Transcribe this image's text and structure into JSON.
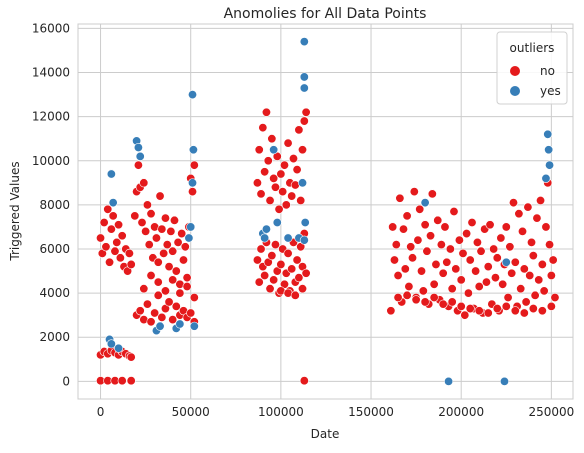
{
  "chart_data": {
    "type": "scatter",
    "title": "Anomolies for All Data Points",
    "xlabel": "Date",
    "ylabel": "Triggered Values",
    "xlim": [
      -12500,
      262000
    ],
    "ylim": [
      -800,
      16200
    ],
    "xticks": [
      0,
      50000,
      100000,
      150000,
      200000,
      250000
    ],
    "yticks": [
      0,
      2000,
      4000,
      6000,
      8000,
      10000,
      12000,
      14000,
      16000
    ],
    "grid": true,
    "legend": {
      "title": "outliers",
      "position": "top-right",
      "entries": [
        {
          "label": "no",
          "color": "#e41a1c"
        },
        {
          "label": "yes",
          "color": "#377eb8"
        }
      ]
    },
    "series": [
      {
        "name": "no",
        "color": "#e41a1c",
        "points": [
          [
            0,
            6500
          ],
          [
            1000,
            5800
          ],
          [
            2000,
            7200
          ],
          [
            3000,
            6100
          ],
          [
            4000,
            7800
          ],
          [
            5000,
            5400
          ],
          [
            6000,
            6900
          ],
          [
            7000,
            7500
          ],
          [
            8000,
            5900
          ],
          [
            9000,
            6300
          ],
          [
            10000,
            7100
          ],
          [
            11000,
            5600
          ],
          [
            12000,
            6600
          ],
          [
            13000,
            5200
          ],
          [
            14000,
            6000
          ],
          [
            15000,
            5000
          ],
          [
            16000,
            5800
          ],
          [
            17000,
            5300
          ],
          [
            0,
            1200
          ],
          [
            2000,
            1350
          ],
          [
            4000,
            1250
          ],
          [
            6000,
            1400
          ],
          [
            8000,
            1300
          ],
          [
            10000,
            1200
          ],
          [
            12000,
            1350
          ],
          [
            14000,
            1250
          ],
          [
            16000,
            1150
          ],
          [
            17000,
            1100
          ],
          [
            0,
            30
          ],
          [
            4000,
            30
          ],
          [
            8000,
            30
          ],
          [
            12000,
            30
          ],
          [
            17000,
            30
          ],
          [
            19000,
            7500
          ],
          [
            20000,
            8600
          ],
          [
            21000,
            9800
          ],
          [
            22000,
            8800
          ],
          [
            23000,
            7200
          ],
          [
            24000,
            9000
          ],
          [
            25000,
            6800
          ],
          [
            26000,
            8000
          ],
          [
            27000,
            6200
          ],
          [
            28000,
            7600
          ],
          [
            29000,
            5600
          ],
          [
            30000,
            7000
          ],
          [
            31000,
            6500
          ],
          [
            32000,
            5400
          ],
          [
            33000,
            8400
          ],
          [
            34000,
            6900
          ],
          [
            35000,
            5800
          ],
          [
            36000,
            7400
          ],
          [
            37000,
            6200
          ],
          [
            38000,
            5200
          ],
          [
            39000,
            6800
          ],
          [
            40000,
            5900
          ],
          [
            41000,
            7300
          ],
          [
            42000,
            5000
          ],
          [
            43000,
            6300
          ],
          [
            44000,
            4400
          ],
          [
            45000,
            6700
          ],
          [
            46000,
            5500
          ],
          [
            47000,
            6100
          ],
          [
            48000,
            4700
          ],
          [
            49000,
            7000
          ],
          [
            50000,
            9200
          ],
          [
            51000,
            8600
          ],
          [
            52000,
            9800
          ],
          [
            20000,
            3000
          ],
          [
            22000,
            3200
          ],
          [
            24000,
            2800
          ],
          [
            26000,
            3500
          ],
          [
            28000,
            2700
          ],
          [
            30000,
            3100
          ],
          [
            32000,
            3900
          ],
          [
            34000,
            2900
          ],
          [
            36000,
            3300
          ],
          [
            38000,
            3600
          ],
          [
            40000,
            2800
          ],
          [
            42000,
            3400
          ],
          [
            44000,
            3000
          ],
          [
            46000,
            3200
          ],
          [
            48000,
            2900
          ],
          [
            50000,
            3100
          ],
          [
            52000,
            2700
          ],
          [
            24000,
            4200
          ],
          [
            28000,
            4800
          ],
          [
            32000,
            4500
          ],
          [
            36000,
            4100
          ],
          [
            40000,
            4600
          ],
          [
            44000,
            4000
          ],
          [
            48000,
            4300
          ],
          [
            52000,
            3800
          ],
          [
            87000,
            9000
          ],
          [
            88000,
            10500
          ],
          [
            89000,
            8500
          ],
          [
            90000,
            11500
          ],
          [
            91000,
            9500
          ],
          [
            92000,
            12200
          ],
          [
            93000,
            10000
          ],
          [
            94000,
            8200
          ],
          [
            95000,
            11000
          ],
          [
            96000,
            9200
          ],
          [
            97000,
            8800
          ],
          [
            98000,
            10200
          ],
          [
            99000,
            7800
          ],
          [
            100000,
            9400
          ],
          [
            101000,
            8600
          ],
          [
            102000,
            9800
          ],
          [
            103000,
            8000
          ],
          [
            104000,
            10800
          ],
          [
            105000,
            9000
          ],
          [
            106000,
            8400
          ],
          [
            107000,
            10100
          ],
          [
            108000,
            8900
          ],
          [
            109000,
            9600
          ],
          [
            110000,
            11400
          ],
          [
            111000,
            8200
          ],
          [
            112000,
            10500
          ],
          [
            113000,
            11800
          ],
          [
            114000,
            12200
          ],
          [
            87000,
            5500
          ],
          [
            88000,
            4500
          ],
          [
            89000,
            6000
          ],
          [
            90000,
            5200
          ],
          [
            91000,
            4800
          ],
          [
            92000,
            6300
          ],
          [
            93000,
            5400
          ],
          [
            94000,
            4200
          ],
          [
            95000,
            5700
          ],
          [
            96000,
            4600
          ],
          [
            97000,
            6200
          ],
          [
            98000,
            5000
          ],
          [
            99000,
            4000
          ],
          [
            100000,
            5300
          ],
          [
            101000,
            6000
          ],
          [
            102000,
            4400
          ],
          [
            103000,
            4900
          ],
          [
            104000,
            5800
          ],
          [
            105000,
            4100
          ],
          [
            106000,
            5100
          ],
          [
            107000,
            6300
          ],
          [
            108000,
            4500
          ],
          [
            109000,
            5500
          ],
          [
            110000,
            4700
          ],
          [
            111000,
            6100
          ],
          [
            112000,
            5200
          ],
          [
            113000,
            6700
          ],
          [
            114000,
            4900
          ],
          [
            100000,
            4100
          ],
          [
            104000,
            4000
          ],
          [
            108000,
            3900
          ],
          [
            112000,
            4200
          ],
          [
            113000,
            30
          ],
          [
            161000,
            3200
          ],
          [
            162000,
            7000
          ],
          [
            163000,
            5500
          ],
          [
            164000,
            6200
          ],
          [
            165000,
            4800
          ],
          [
            166000,
            8300
          ],
          [
            167000,
            3600
          ],
          [
            168000,
            6900
          ],
          [
            169000,
            5100
          ],
          [
            170000,
            7500
          ],
          [
            171000,
            4300
          ],
          [
            172000,
            6100
          ],
          [
            173000,
            5600
          ],
          [
            174000,
            8600
          ],
          [
            175000,
            3800
          ],
          [
            176000,
            6400
          ],
          [
            177000,
            7800
          ],
          [
            178000,
            5000
          ],
          [
            179000,
            4100
          ],
          [
            180000,
            7100
          ],
          [
            181000,
            5900
          ],
          [
            182000,
            3500
          ],
          [
            183000,
            6600
          ],
          [
            184000,
            8500
          ],
          [
            185000,
            4400
          ],
          [
            186000,
            5300
          ],
          [
            187000,
            7300
          ],
          [
            188000,
            3700
          ],
          [
            189000,
            6200
          ],
          [
            190000,
            4900
          ],
          [
            191000,
            7000
          ],
          [
            192000,
            5400
          ],
          [
            193000,
            3400
          ],
          [
            194000,
            6000
          ],
          [
            195000,
            4200
          ],
          [
            196000,
            7700
          ],
          [
            197000,
            5100
          ],
          [
            198000,
            3200
          ],
          [
            199000,
            6400
          ],
          [
            200000,
            4600
          ],
          [
            201000,
            5800
          ],
          [
            202000,
            3000
          ],
          [
            203000,
            6700
          ],
          [
            204000,
            4000
          ],
          [
            205000,
            5500
          ],
          [
            206000,
            7200
          ],
          [
            207000,
            3300
          ],
          [
            208000,
            5000
          ],
          [
            209000,
            6300
          ],
          [
            210000,
            4300
          ],
          [
            211000,
            5900
          ],
          [
            212000,
            3100
          ],
          [
            213000,
            6900
          ],
          [
            214000,
            4500
          ],
          [
            215000,
            5200
          ],
          [
            216000,
            7100
          ],
          [
            217000,
            3500
          ],
          [
            218000,
            6000
          ],
          [
            219000,
            4700
          ],
          [
            220000,
            5600
          ],
          [
            221000,
            3200
          ],
          [
            222000,
            6500
          ],
          [
            223000,
            4400
          ],
          [
            224000,
            5300
          ],
          [
            225000,
            7000
          ],
          [
            226000,
            3800
          ],
          [
            227000,
            6100
          ],
          [
            228000,
            4900
          ],
          [
            229000,
            8100
          ],
          [
            230000,
            5400
          ],
          [
            231000,
            3400
          ],
          [
            232000,
            7600
          ],
          [
            233000,
            4200
          ],
          [
            234000,
            6800
          ],
          [
            235000,
            5100
          ],
          [
            236000,
            3600
          ],
          [
            237000,
            7900
          ],
          [
            238000,
            4800
          ],
          [
            239000,
            6300
          ],
          [
            240000,
            5700
          ],
          [
            241000,
            3900
          ],
          [
            242000,
            7400
          ],
          [
            243000,
            4600
          ],
          [
            244000,
            8200
          ],
          [
            245000,
            5300
          ],
          [
            246000,
            4100
          ],
          [
            247000,
            7000
          ],
          [
            248000,
            9000
          ],
          [
            249000,
            6200
          ],
          [
            250000,
            4800
          ],
          [
            251000,
            5500
          ],
          [
            252000,
            3800
          ],
          [
            165000,
            3800
          ],
          [
            170000,
            3900
          ],
          [
            175000,
            3700
          ],
          [
            180000,
            3600
          ],
          [
            185000,
            3800
          ],
          [
            190000,
            3500
          ],
          [
            195000,
            3600
          ],
          [
            200000,
            3400
          ],
          [
            205000,
            3300
          ],
          [
            210000,
            3200
          ],
          [
            215000,
            3100
          ],
          [
            220000,
            3300
          ],
          [
            225000,
            3400
          ],
          [
            230000,
            3200
          ],
          [
            235000,
            3100
          ],
          [
            240000,
            3300
          ],
          [
            245000,
            3200
          ],
          [
            250000,
            3400
          ]
        ]
      },
      {
        "name": "yes",
        "color": "#377eb8",
        "points": [
          [
            6000,
            9400
          ],
          [
            7000,
            8100
          ],
          [
            5000,
            1900
          ],
          [
            6000,
            1700
          ],
          [
            10000,
            1500
          ],
          [
            20000,
            10900
          ],
          [
            21000,
            10600
          ],
          [
            22000,
            10200
          ],
          [
            31000,
            2300
          ],
          [
            33000,
            2500
          ],
          [
            42000,
            2400
          ],
          [
            44000,
            2600
          ],
          [
            51000,
            13000
          ],
          [
            51500,
            10500
          ],
          [
            51000,
            9000
          ],
          [
            50000,
            7000
          ],
          [
            49000,
            6500
          ],
          [
            52000,
            2500
          ],
          [
            90000,
            6700
          ],
          [
            92000,
            6900
          ],
          [
            91000,
            6500
          ],
          [
            96000,
            10500
          ],
          [
            98000,
            7200
          ],
          [
            104000,
            6500
          ],
          [
            110000,
            6500
          ],
          [
            113000,
            15400
          ],
          [
            113000,
            13800
          ],
          [
            113000,
            13300
          ],
          [
            112000,
            9000
          ],
          [
            113500,
            7200
          ],
          [
            113000,
            6400
          ],
          [
            180000,
            8100
          ],
          [
            193000,
            0
          ],
          [
            224000,
            0
          ],
          [
            225000,
            5400
          ],
          [
            248000,
            11200
          ],
          [
            248500,
            10500
          ],
          [
            249000,
            9800
          ],
          [
            247000,
            9200
          ]
        ]
      }
    ]
  }
}
